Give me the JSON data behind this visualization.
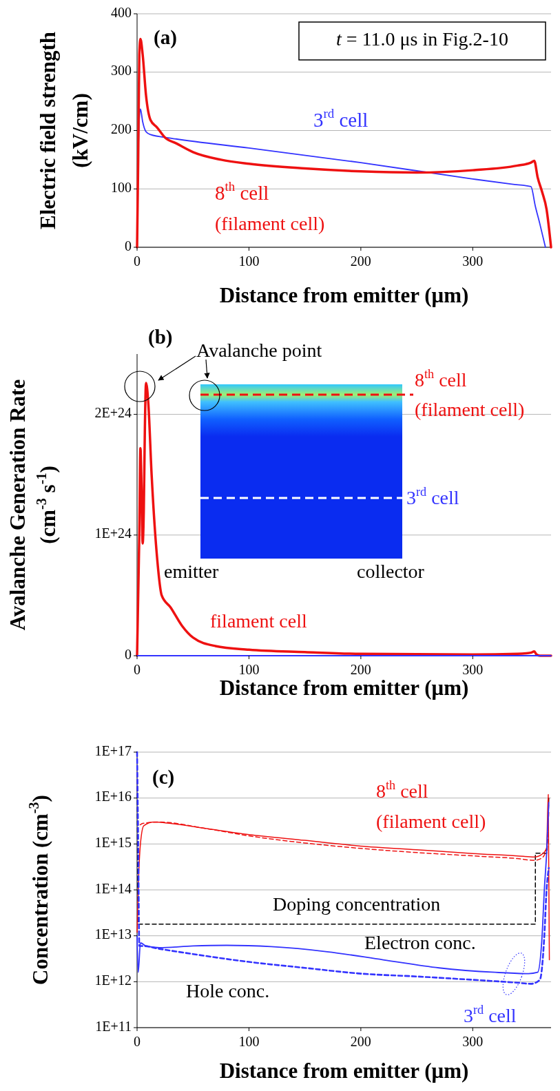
{
  "chart_data": [
    {
      "type": "line",
      "title": "(a)",
      "xlabel": "Distance from emitter (μm)",
      "ylabel": "Electric field strength\n(kV/cm)",
      "xlim": [
        0,
        370
      ],
      "xticks": [
        0,
        100,
        200,
        300
      ],
      "ylim": [
        0,
        400
      ],
      "yticks": [
        0,
        100,
        200,
        300,
        400
      ],
      "grid": "y",
      "line_style": "solid",
      "series": [
        {
          "name": "3$^{rd}$ cell",
          "color": "#3333ff",
          "x": [
            0,
            1,
            2,
            3,
            5,
            8,
            12,
            30,
            100,
            200,
            300,
            335,
            352,
            356,
            360,
            365
          ],
          "values": [
            0,
            150,
            220,
            237,
            215,
            198,
            193,
            187,
            170,
            145,
            117,
            108,
            104,
            70,
            40,
            0
          ]
        },
        {
          "name": "8$^{th}$ cell",
          "color": "#ee1111",
          "x": [
            0,
            1,
            2,
            3,
            5,
            8,
            12,
            18,
            25,
            35,
            50,
            75,
            100,
            150,
            200,
            250,
            300,
            340,
            352,
            355,
            358,
            362,
            366,
            370
          ],
          "values": [
            0,
            150,
            330,
            357,
            330,
            260,
            218,
            205,
            188,
            178,
            163,
            150,
            143,
            135,
            130,
            128,
            132,
            140,
            145,
            148,
            120,
            95,
            65,
            0
          ]
        }
      ],
      "annotations": [
        "t = 11.0 μs in Fig.2-10",
        "(filament cell)"
      ]
    },
    {
      "type": "line",
      "title": "(b)",
      "xlabel": "Distance from emitter (μm)",
      "ylabel": "Avalanche Generation Rate\n(cm$^{-3}$ s$^{-1}$)",
      "xlim": [
        0,
        370
      ],
      "xticks": [
        0,
        100,
        200,
        300
      ],
      "ylim": [
        0,
        2.5e+24
      ],
      "yticks": [
        0,
        {
          "value": 1e+24,
          "label": "1E+24"
        },
        {
          "value": 2e+24,
          "label": "2E+24"
        }
      ],
      "grid": "y",
      "line_style": "solid",
      "series": [
        {
          "color": "#ee1111",
          "x": [
            0,
            2,
            3,
            4,
            5,
            6,
            7,
            8,
            10,
            13,
            18,
            22,
            30,
            40,
            50,
            70,
            100,
            150,
            200,
            300,
            340,
            352,
            355,
            357,
            360,
            370
          ],
          "values": [
            0,
            1e+24,
            1.72e+24,
            1.4e+24,
            9.3e+23,
            1.2e+24,
            1.9e+24,
            2.26e+24,
            2.1e+24,
            1.5e+24,
            8e+23,
            5e+23,
            4e+23,
            2.5e+23,
            1.5e+23,
            8e+22,
            5e+22,
            3e+22,
            1.5e+22,
            1e+22,
            1.5e+22,
            2.5e+22,
            3.5e+22,
            1e+22,
            0,
            0
          ]
        },
        {
          "color": "#3333ff",
          "x": [
            0,
            370
          ],
          "values": [
            0,
            0
          ]
        }
      ],
      "annotations": [
        "Avalanche point",
        "8$^{th}$ cell",
        "(filament cell)",
        "3$^{rd}$ cell",
        "emitter",
        "collector",
        "filament cell"
      ]
    },
    {
      "type": "line",
      "title": "(c)",
      "xlabel": "Distance from emitter (μm)",
      "ylabel": "Concentration (cm$^{-3}$)",
      "xlim": [
        0,
        370
      ],
      "xticks": [
        0,
        100,
        200,
        300
      ],
      "ylim": [
        100000000000.0,
        1e+17
      ],
      "yticks": [
        {
          "value": 100000000000.0,
          "label": "1E+11"
        },
        {
          "value": 1000000000000.0,
          "label": "1E+12"
        },
        {
          "value": 10000000000000.0,
          "label": "1E+13"
        },
        {
          "value": 100000000000000.0,
          "label": "1E+14"
        },
        {
          "value": 1000000000000000.0,
          "label": "1E+15"
        },
        {
          "value": 1e+16,
          "label": "1E+16"
        },
        {
          "value": 1e+17,
          "label": "1E+17"
        }
      ],
      "grid": "y",
      "log": true,
      "series": [
        {
          "color": "#000000",
          "line_style": "dashed",
          "x": [
            0,
            1,
            356,
            356,
            366,
            368
          ],
          "values": [
            1e+17,
            18000000000000.0,
            18000000000000.0,
            630000000000000.0,
            630000000000000.0,
            1e+16
          ]
        },
        {
          "color": "#ee1111",
          "line_style": "solid",
          "x": [
            0,
            1,
            3,
            6,
            15,
            30,
            60,
            100,
            150,
            200,
            250,
            300,
            340,
            355,
            362,
            366,
            367.5,
            368.5
          ],
          "values": [
            12000000000000.0,
            100000000000000.0,
            1000000000000000.0,
            2500000000000000.0,
            3000000000000000.0,
            2800000000000000.0,
            2200000000000000.0,
            1600000000000000.0,
            1200000000000000.0,
            900000000000000.0,
            750000000000000.0,
            620000000000000.0,
            550000000000000.0,
            520000000000000.0,
            600000000000000.0,
            800000000000000.0,
            1.2e+16,
            3000000000000.0
          ]
        },
        {
          "color": "#ee1111",
          "line_style": "dashed",
          "x": [
            0,
            1,
            5,
            20,
            60,
            100,
            150,
            200,
            250,
            300,
            340,
            355,
            362,
            366,
            368
          ],
          "values": [
            1e+17,
            2500000000000000.0,
            2800000000000000.0,
            3000000000000000.0,
            2200000000000000.0,
            1500000000000000.0,
            1050000000000000.0,
            800000000000000.0,
            650000000000000.0,
            550000000000000.0,
            480000000000000.0,
            440000000000000.0,
            500000000000000.0,
            800000000000000.0,
            5000000000000000.0
          ]
        },
        {
          "color": "#3333ff",
          "line_style": "solid",
          "x": [
            0,
            1,
            3,
            8,
            20,
            50,
            80,
            120,
            170,
            220,
            270,
            320,
            350,
            358,
            362,
            364,
            366,
            368
          ],
          "values": [
            10000000000000.0,
            1600000000000.0,
            7000000000000.0,
            6000000000000.0,
            5500000000000.0,
            6000000000000.0,
            6200000000000.0,
            5800000000000.0,
            4500000000000.0,
            3000000000000.0,
            2000000000000.0,
            1600000000000.0,
            1500000000000.0,
            1600000000000.0,
            10000000000000.0,
            100000000000000.0,
            600000000000000.0,
            8000000000000000.0
          ]
        },
        {
          "color": "#3333ff",
          "line_style": "dashed",
          "x": [
            0,
            1,
            2,
            5,
            20,
            50,
            100,
            150,
            200,
            250,
            300,
            340,
            352,
            360,
            364,
            366,
            368
          ],
          "values": [
            1e+17,
            1000000000000000.0,
            6000000000000.0,
            6000000000000.0,
            5200000000000.0,
            4000000000000.0,
            2700000000000.0,
            2000000000000.0,
            1500000000000.0,
            1300000000000.0,
            1100000000000.0,
            950000000000.0,
            900000000000.0,
            1100000000000.0,
            10000000000000.0,
            100000000000000.0,
            300000000000000.0
          ]
        }
      ],
      "annotations": [
        "8$^{th}$ cell",
        "(filament cell)",
        "Doping concentration",
        "Electron conc.",
        "Hole conc.",
        "3$^{rd}$ cell"
      ]
    }
  ]
}
